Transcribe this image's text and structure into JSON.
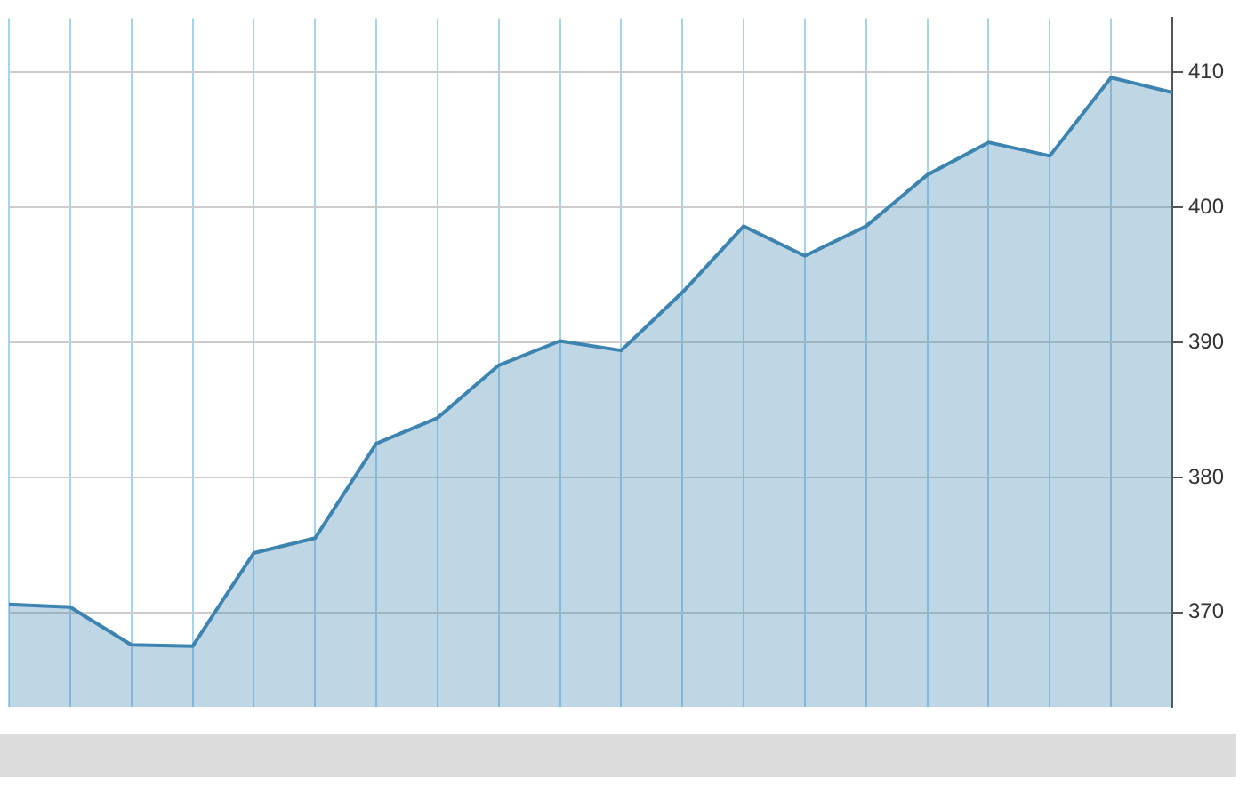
{
  "chart_data": {
    "type": "area",
    "categories": [
      null,
      null,
      null,
      null,
      null,
      null,
      null,
      null,
      null,
      null,
      null,
      null,
      null,
      null,
      null,
      null,
      null,
      null,
      null,
      null
    ],
    "series": [
      {
        "color": "#3d84b0",
        "values": [
          370.6,
          370.4,
          367.6,
          367.5,
          374.4,
          375.5,
          382.5,
          384.4,
          388.3,
          390.1,
          389.4,
          393.7,
          398.6,
          396.4,
          398.6,
          402.4,
          404.8,
          403.8,
          409.6,
          408.5
        ]
      }
    ],
    "ylim": [
      363,
      414
    ],
    "yticks": [
      370,
      380,
      390,
      400,
      410
    ],
    "grid": true,
    "legend": false,
    "marker": "none"
  }
}
